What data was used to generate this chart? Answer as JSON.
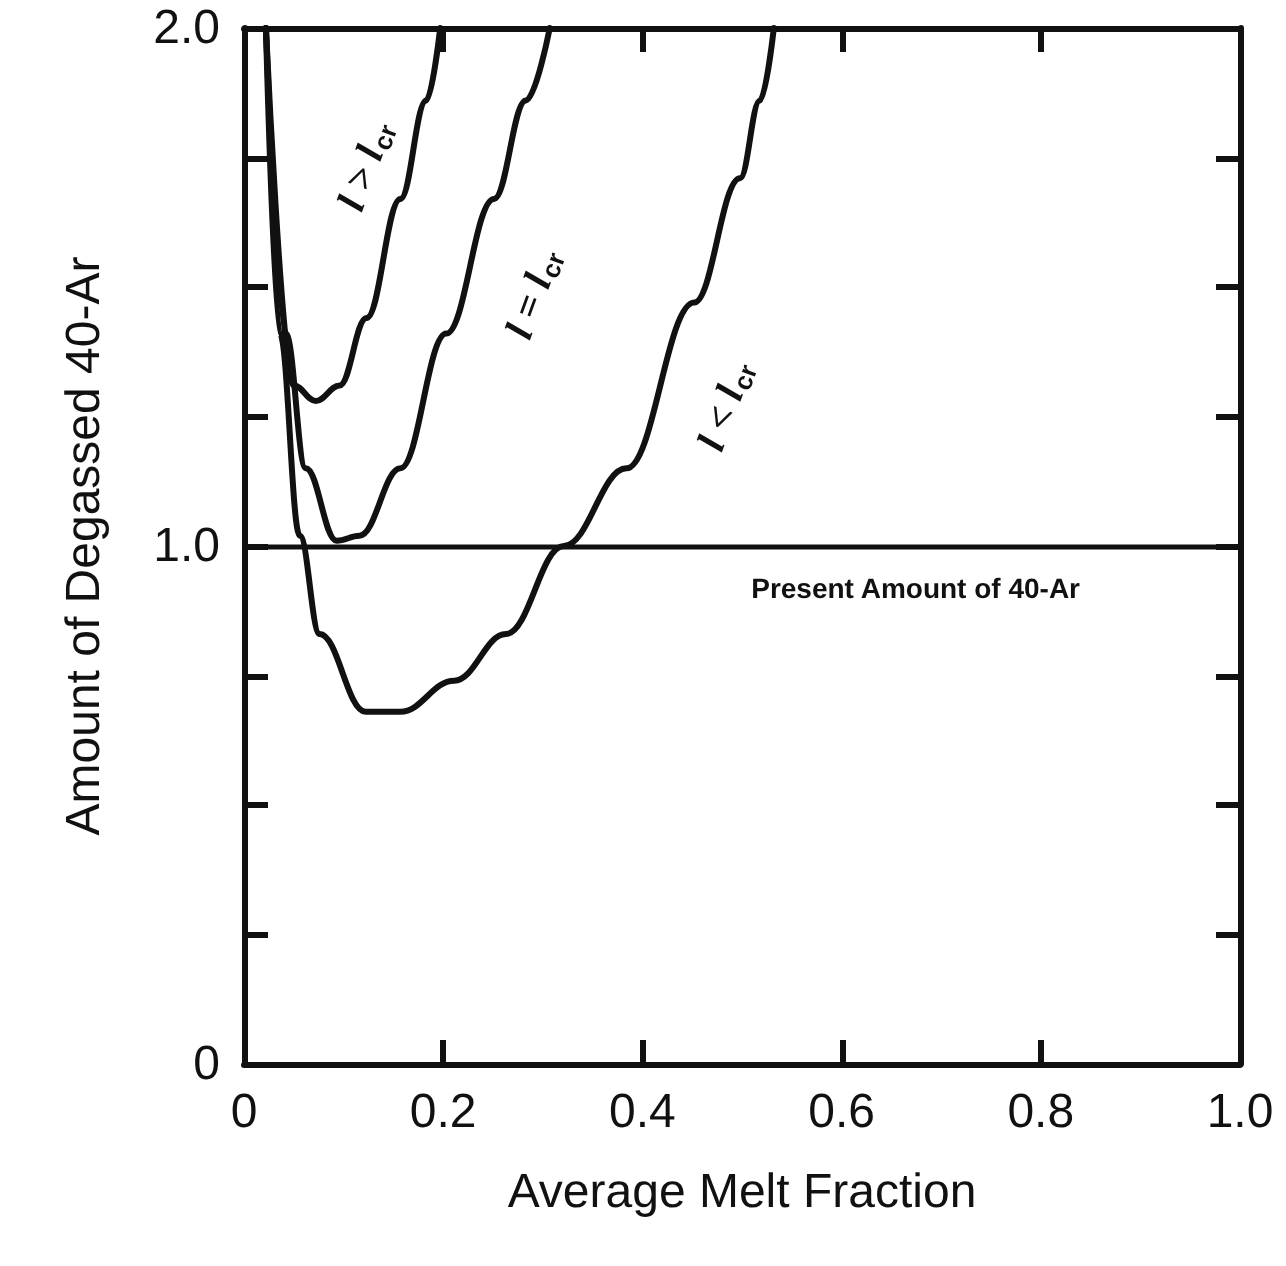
{
  "chart_data": {
    "type": "line",
    "xlabel": "Average Melt Fraction",
    "ylabel": "Amount of Degassed 40-Ar",
    "xlim": [
      0,
      1
    ],
    "ylim": [
      0,
      2
    ],
    "xticks": [
      0,
      0.2,
      0.4,
      0.6,
      0.8,
      {
        "value": 1,
        "label": "1.0"
      }
    ],
    "yticks": [
      0,
      {
        "value": 0.25,
        "label": null
      },
      {
        "value": 0.5,
        "label": null
      },
      {
        "value": 0.75,
        "label": null
      },
      {
        "value": 1,
        "label": "1.0"
      },
      {
        "value": 1.25,
        "label": null
      },
      {
        "value": 1.5,
        "label": null
      },
      {
        "value": 1.75,
        "label": null
      },
      {
        "value": 2,
        "label": "2.0"
      }
    ],
    "grid": false,
    "marker": "none",
    "line_style": "solid",
    "series": [
      {
        "color": "#111111",
        "x": [
          0.022,
          0.05,
          0.072,
          0.096,
          0.123,
          0.157,
          0.183,
          0.197
        ],
        "values": [
          2.0,
          1.31,
          1.28,
          1.31,
          1.44,
          1.67,
          1.86,
          2.0
        ]
      },
      {
        "color": "#111111",
        "x": [
          0.022,
          0.042,
          0.062,
          0.093,
          0.116,
          0.157,
          0.203,
          0.251,
          0.283,
          0.307
        ],
        "values": [
          2.0,
          1.41,
          1.15,
          1.01,
          1.02,
          1.15,
          1.41,
          1.67,
          1.86,
          2.0
        ]
      },
      {
        "color": "#111111",
        "x": [
          0.022,
          0.036,
          0.056,
          0.076,
          0.122,
          0.157,
          0.211,
          0.263,
          0.321,
          0.384,
          0.452,
          0.498,
          0.518,
          0.532
        ],
        "values": [
          2.0,
          1.41,
          1.02,
          0.83,
          0.68,
          0.68,
          0.74,
          0.83,
          1.0,
          1.15,
          1.47,
          1.71,
          1.86,
          2.0
        ]
      }
    ],
    "ref_lines": [
      {
        "axis": "y",
        "value": 1,
        "label": "Present Amount of 40-Ar",
        "color": "#111111"
      }
    ],
    "annotations": [
      "l > l$_{cr}$",
      "l = l$_{cr}$",
      "l < l$_{cr}$"
    ]
  }
}
